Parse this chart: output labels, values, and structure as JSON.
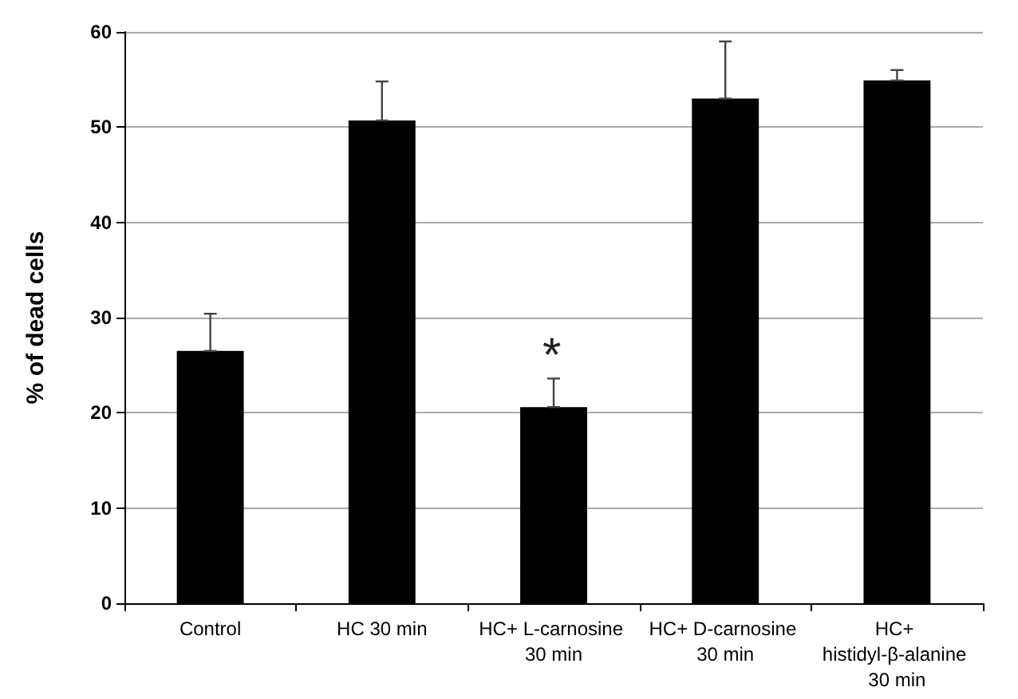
{
  "chart_data": {
    "type": "bar",
    "ylabel": "% of dead cells",
    "categories": [
      "Control",
      "HC 30 min",
      "HC+ L-carnosine 30 min",
      "HC+ D-carnosine 30 min",
      "HC+ histidyl-β-alanine 30 min"
    ],
    "values": [
      26.5,
      50.7,
      20.6,
      53.0,
      54.9
    ],
    "errors": [
      [
        26.5,
        30.4
      ],
      [
        50.7,
        54.8
      ],
      [
        20.6,
        23.6
      ],
      [
        53.0,
        59.0
      ],
      [
        54.9,
        56.0
      ]
    ],
    "color": "#000000",
    "ylim": [
      0,
      60
    ],
    "yticks": [
      0,
      10,
      20,
      30,
      40,
      50,
      60
    ],
    "grid": "y",
    "annotations": [
      "*"
    ]
  }
}
